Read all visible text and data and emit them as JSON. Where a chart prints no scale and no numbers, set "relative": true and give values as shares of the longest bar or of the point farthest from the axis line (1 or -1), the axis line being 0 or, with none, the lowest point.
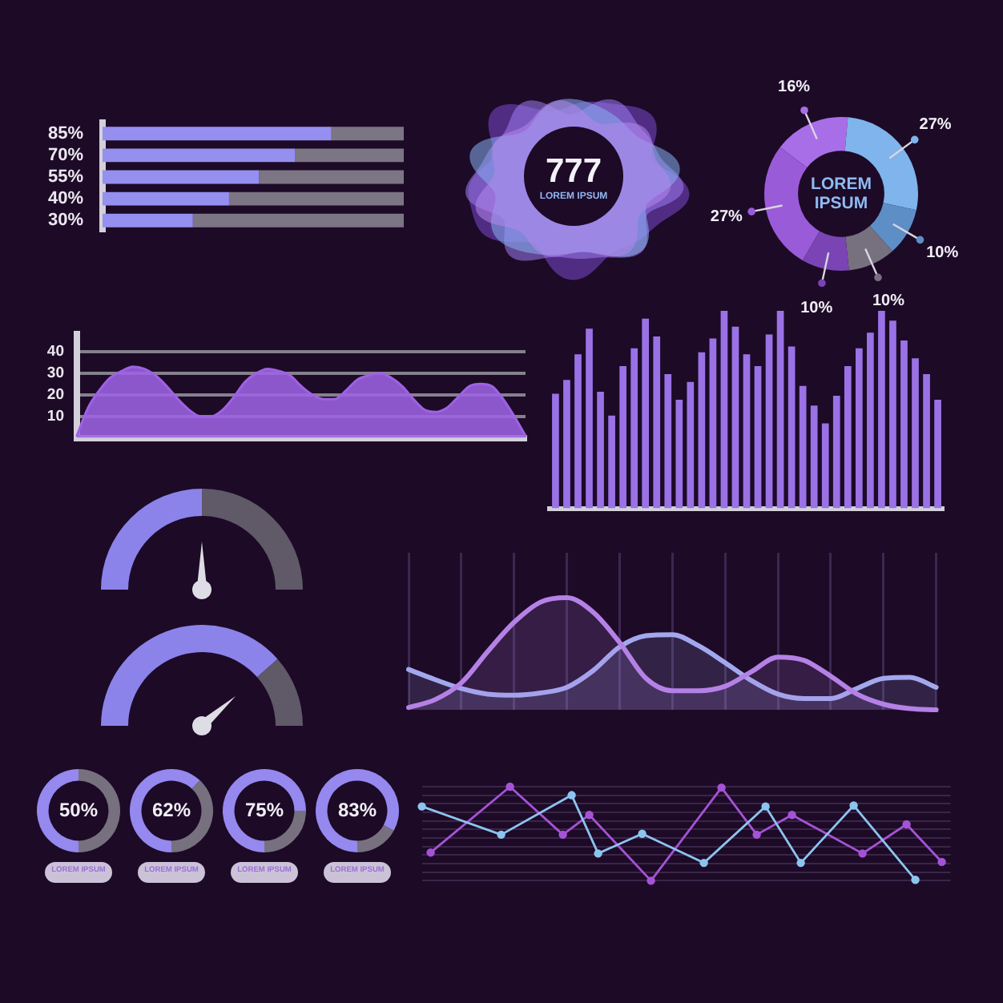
{
  "chart_data": [
    {
      "type": "bar",
      "orientation": "horizontal",
      "stacked": true,
      "relative": true,
      "categories": [
        "85%",
        "70%",
        "55%",
        "40%",
        "30%"
      ],
      "series": [
        {
          "color": "#958ff0",
          "values": [
            0.76,
            0.64,
            0.52,
            0.42,
            0.3
          ]
        },
        {
          "color": "#7c7584",
          "values": [
            0.24,
            0.36,
            0.48,
            0.58,
            0.7
          ]
        }
      ]
    },
    {
      "type": "other",
      "title": "777",
      "subtitle": "LOREM IPSUM"
    },
    {
      "type": "donut",
      "categories": [
        null,
        null,
        null,
        null,
        null,
        null
      ],
      "values": [
        16,
        27,
        10,
        10,
        10,
        27
      ],
      "colors": [
        "#a86ee8",
        "#7fb4ec",
        "#5d8ec6",
        "#77707f",
        "#7a44b4",
        "#9a5bd8"
      ],
      "value_labels": [
        "16%",
        "27%",
        "10%",
        "10%",
        "10%",
        "27%"
      ],
      "annotations": [
        "LOREM IPSUM"
      ]
    },
    {
      "type": "area",
      "categories": [
        null,
        null,
        null,
        null,
        null,
        null,
        null,
        null,
        null,
        null,
        null,
        null,
        null,
        null,
        null,
        null,
        null,
        null,
        null,
        null,
        null,
        null,
        null,
        null,
        null,
        null,
        null,
        null,
        null,
        null,
        null,
        null,
        null,
        null,
        null,
        null,
        null,
        null,
        null,
        null,
        null
      ],
      "values": [
        1,
        14,
        22,
        28,
        31,
        33,
        32,
        29,
        24,
        18,
        13,
        10,
        10,
        13,
        19,
        26,
        30,
        32,
        31,
        29,
        24,
        20,
        18,
        18,
        22,
        27,
        29,
        30,
        28,
        24,
        18,
        13,
        12,
        14,
        19,
        24,
        25,
        24,
        18,
        10,
        1
      ],
      "color": "#9d62e4",
      "ylim": [
        0,
        48
      ],
      "yticks": [
        10,
        20,
        30,
        40
      ],
      "grid": "y"
    },
    {
      "type": "bar",
      "relative": true,
      "categories": [
        null,
        null,
        null,
        null,
        null,
        null,
        null,
        null,
        null,
        null,
        null,
        null,
        null,
        null,
        null,
        null,
        null,
        null,
        null,
        null,
        null,
        null,
        null,
        null,
        null,
        null,
        null,
        null,
        null,
        null,
        null,
        null,
        null,
        null,
        null
      ],
      "values": [
        0.58,
        0.65,
        0.78,
        0.91,
        0.59,
        0.47,
        0.72,
        0.81,
        0.96,
        0.87,
        0.68,
        0.55,
        0.64,
        0.79,
        0.86,
        1,
        0.92,
        0.78,
        0.72,
        0.88,
        1,
        0.82,
        0.62,
        0.52,
        0.43,
        0.57,
        0.72,
        0.81,
        0.89,
        1,
        0.95,
        0.85,
        0.76,
        0.68,
        0.55
      ],
      "color": "#9a72e6"
    },
    {
      "type": "donut",
      "categories": [
        null,
        null
      ],
      "values": [
        50,
        50
      ],
      "colors": [
        "#8b83ea",
        "#5f5968"
      ]
    },
    {
      "type": "area",
      "relative": true,
      "categories": [
        null,
        null,
        null,
        null,
        null,
        null,
        null,
        null,
        null,
        null,
        null,
        null,
        null,
        null,
        null,
        null,
        null,
        null,
        null,
        null,
        null
      ],
      "series": [
        {
          "color": "#b581e6",
          "values": [
            0.02,
            0.09,
            0.24,
            0.52,
            0.78,
            0.96,
            1,
            0.87,
            0.6,
            0.28,
            0.17,
            0.17,
            0.21,
            0.34,
            0.47,
            0.44,
            0.3,
            0.14,
            0.05,
            0.01,
            0
          ]
        },
        {
          "color": "#a3a8ee",
          "values": [
            0.36,
            0.27,
            0.19,
            0.14,
            0.13,
            0.15,
            0.2,
            0.35,
            0.56,
            0.66,
            0.67,
            0.57,
            0.42,
            0.26,
            0.14,
            0.1,
            0.1,
            0.19,
            0.28,
            0.29,
            0.2
          ]
        }
      ],
      "grid": "x"
    },
    {
      "type": "donut",
      "categories": [
        null,
        null
      ],
      "values": [
        77,
        23
      ],
      "colors": [
        "#8b83ea",
        "#5f5968"
      ]
    },
    {
      "type": "donut",
      "categories": [
        null,
        null
      ],
      "values": [
        50,
        50
      ],
      "colors": [
        "#9588ee",
        "#77717f"
      ],
      "value_labels": [
        "50%",
        null
      ],
      "annotations": [
        "LOREM IPSUM"
      ]
    },
    {
      "type": "donut",
      "categories": [
        null,
        null
      ],
      "values": [
        62,
        38
      ],
      "colors": [
        "#9588ee",
        "#77717f"
      ],
      "value_labels": [
        "62%",
        null
      ],
      "annotations": [
        "LOREM IPSUM"
      ]
    },
    {
      "type": "donut",
      "categories": [
        null,
        null
      ],
      "values": [
        75,
        25
      ],
      "colors": [
        "#9588ee",
        "#77717f"
      ],
      "value_labels": [
        "75%",
        null
      ],
      "annotations": [
        "LOREM IPSUM"
      ]
    },
    {
      "type": "donut",
      "categories": [
        null,
        null
      ],
      "values": [
        83,
        17
      ],
      "colors": [
        "#9588ee",
        "#77717f"
      ],
      "value_labels": [
        "83%",
        null
      ],
      "annotations": [
        "LOREM IPSUM"
      ]
    },
    {
      "type": "line",
      "relative": true,
      "categories": [
        null,
        null,
        null,
        null,
        null,
        null,
        null,
        null,
        null,
        null,
        null,
        null,
        null,
        null,
        null,
        null,
        null,
        null,
        null,
        null,
        null,
        null,
        null,
        null,
        null,
        null,
        null,
        null,
        null,
        null,
        null,
        null,
        null,
        null,
        null,
        null,
        null,
        null,
        null,
        null,
        null,
        null,
        null,
        null,
        null,
        null,
        null,
        null,
        null,
        null,
        null,
        null,
        null,
        null,
        null,
        null,
        null,
        null,
        null,
        null,
        null
      ],
      "series": [
        {
          "color": "#8cc4ee",
          "values": [
            0.79,
            null,
            null,
            null,
            null,
            null,
            null,
            null,
            null,
            0.49,
            null,
            null,
            null,
            null,
            null,
            null,
            null,
            0.91,
            null,
            null,
            0.29,
            null,
            null,
            null,
            null,
            0.5,
            null,
            null,
            null,
            null,
            null,
            null,
            0.19,
            null,
            null,
            null,
            null,
            null,
            null,
            0.79,
            null,
            null,
            null,
            0.19,
            null,
            null,
            null,
            null,
            null,
            0.8,
            null,
            null,
            null,
            null,
            null,
            null,
            0.01,
            null,
            null,
            null,
            null
          ]
        },
        {
          "color": "#a553d6",
          "values": [
            null,
            0.3,
            null,
            null,
            null,
            null,
            null,
            null,
            null,
            null,
            1,
            null,
            null,
            null,
            null,
            null,
            0.49,
            null,
            null,
            0.7,
            null,
            null,
            null,
            null,
            null,
            null,
            0,
            null,
            null,
            null,
            null,
            null,
            null,
            null,
            0.99,
            null,
            null,
            null,
            0.49,
            null,
            null,
            null,
            0.7,
            null,
            null,
            null,
            null,
            null,
            null,
            null,
            0.29,
            null,
            null,
            null,
            null,
            0.6,
            null,
            null,
            null,
            0.2,
            null
          ]
        }
      ],
      "marker": "circle",
      "grid": "y"
    }
  ]
}
